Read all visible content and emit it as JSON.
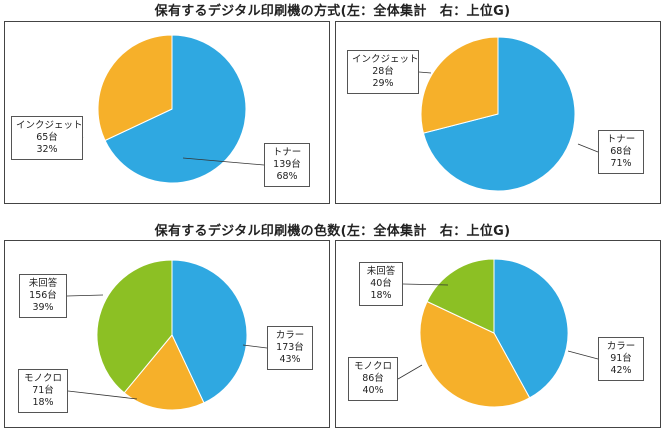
{
  "colors": {
    "blue": "#2fa8e1",
    "orange": "#f6b02a",
    "green": "#8cc024",
    "outline": "#ffffff"
  },
  "sections": [
    {
      "title": "保有するデジタル印刷機の方式(左：全体集計　右：上位G)"
    },
    {
      "title": "保有するデジタル印刷機の色数(左：全体集計　右：上位G)"
    }
  ],
  "chart_data": [
    {
      "type": "pie",
      "slices": [
        {
          "label": "トナー",
          "count_text": "139台",
          "pct_text": "68%",
          "value": 68,
          "color": "#2fa8e1"
        },
        {
          "label": "インクジェット",
          "count_text": "65台",
          "pct_text": "32%",
          "value": 32,
          "color": "#f6b02a"
        }
      ]
    },
    {
      "type": "pie",
      "slices": [
        {
          "label": "トナー",
          "count_text": "68台",
          "pct_text": "71%",
          "value": 71,
          "color": "#2fa8e1"
        },
        {
          "label": "インクジェット",
          "count_text": "28台",
          "pct_text": "29%",
          "value": 29,
          "color": "#f6b02a"
        }
      ]
    },
    {
      "type": "pie",
      "slices": [
        {
          "label": "カラー",
          "count_text": "173台",
          "pct_text": "43%",
          "value": 43,
          "color": "#2fa8e1"
        },
        {
          "label": "モノクロ",
          "count_text": "71台",
          "pct_text": "18%",
          "value": 18,
          "color": "#f6b02a"
        },
        {
          "label": "未回答",
          "count_text": "156台",
          "pct_text": "39%",
          "value": 39,
          "color": "#8cc024"
        }
      ]
    },
    {
      "type": "pie",
      "slices": [
        {
          "label": "カラー",
          "count_text": "91台",
          "pct_text": "42%",
          "value": 42,
          "color": "#2fa8e1"
        },
        {
          "label": "モノクロ",
          "count_text": "86台",
          "pct_text": "40%",
          "value": 40,
          "color": "#f6b02a"
        },
        {
          "label": "未回答",
          "count_text": "40台",
          "pct_text": "18%",
          "value": 18,
          "color": "#8cc024"
        }
      ]
    }
  ]
}
